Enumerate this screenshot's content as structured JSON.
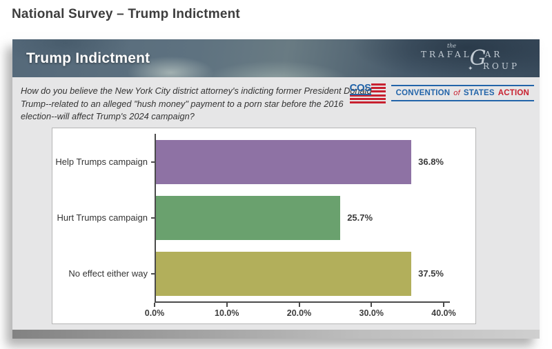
{
  "page": {
    "title": "National Survey – Trump Indictment"
  },
  "slide": {
    "header": {
      "title": "Trump Indictment",
      "trafalgar": {
        "the": "the",
        "part1": "TRAFAL",
        "g": "G",
        "part2": "AR",
        "part3": "ROUP",
        "star": "✦"
      }
    },
    "question": "How do you believe the New York City district attorney's indicting former President Donald Trump--related to an alleged \"hush money\" payment to a porn star before the 2016 election--will affect Trump's 2024 campaign?",
    "cos": {
      "mark": "COS",
      "word1": "CONVENTION",
      "word2": "of",
      "word3": "STATES",
      "word4": "ACTION",
      "blue": "#2264a9",
      "red": "#c8202f"
    }
  },
  "chart_data": {
    "type": "bar",
    "orientation": "horizontal",
    "title": "",
    "categories": [
      "Help Trumps campaign",
      "Hurt Trumps campaign",
      "No effect either way"
    ],
    "values": [
      36.8,
      25.7,
      37.5
    ],
    "value_labels": [
      "36.8%",
      "25.7%",
      "37.5%"
    ],
    "bar_colors": [
      "#8e72a4",
      "#6aa16e",
      "#b2af5b"
    ],
    "x_ticks": [
      "0.0%",
      "10.0%",
      "20.0%",
      "30.0%",
      "40.0%"
    ],
    "x_tick_values": [
      0,
      10,
      20,
      30,
      40
    ],
    "xlim": [
      0,
      40
    ],
    "grid": false,
    "legend": false,
    "axis_color": "#4a4a4a"
  }
}
